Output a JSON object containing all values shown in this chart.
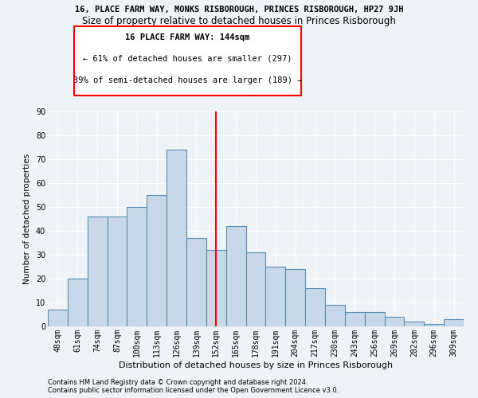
{
  "title_line1": "16, PLACE FARM WAY, MONKS RISBOROUGH, PRINCES RISBOROUGH, HP27 9JH",
  "title_line2": "Size of property relative to detached houses in Princes Risborough",
  "xlabel": "Distribution of detached houses by size in Princes Risborough",
  "ylabel": "Number of detached properties",
  "categories": [
    "48sqm",
    "61sqm",
    "74sqm",
    "87sqm",
    "100sqm",
    "113sqm",
    "126sqm",
    "139sqm",
    "152sqm",
    "165sqm",
    "178sqm",
    "191sqm",
    "204sqm",
    "217sqm",
    "230sqm",
    "243sqm",
    "256sqm",
    "269sqm",
    "282sqm",
    "296sqm",
    "309sqm"
  ],
  "values": [
    7,
    20,
    46,
    46,
    50,
    55,
    74,
    37,
    32,
    42,
    31,
    25,
    24,
    16,
    9,
    6,
    6,
    4,
    2,
    1,
    3
  ],
  "bar_color": "#C8D8E8",
  "bar_edge_color": "#5B8DB0",
  "vline_x": 8.0,
  "vline_color": "red",
  "annotation_title": "16 PLACE FARM WAY: 144sqm",
  "annotation_line1": "← 61% of detached houses are smaller (297)",
  "annotation_line2": "39% of semi-detached houses are larger (189) →",
  "ylim": [
    0,
    90
  ],
  "yticks": [
    0,
    10,
    20,
    30,
    40,
    50,
    60,
    70,
    80,
    90
  ],
  "footer_line1": "Contains HM Land Registry data © Crown copyright and database right 2024.",
  "footer_line2": "Contains public sector information licensed under the Open Government Licence v3.0.",
  "background_color": "#EEF3F8",
  "plot_background": "#EEF3F8",
  "grid_color": "white",
  "title_fontsize": 7.5,
  "subtitle_fontsize": 8.5,
  "xlabel_fontsize": 8,
  "ylabel_fontsize": 7.5,
  "tick_fontsize": 7,
  "footer_fontsize": 6,
  "annotation_fontsize": 7.5
}
